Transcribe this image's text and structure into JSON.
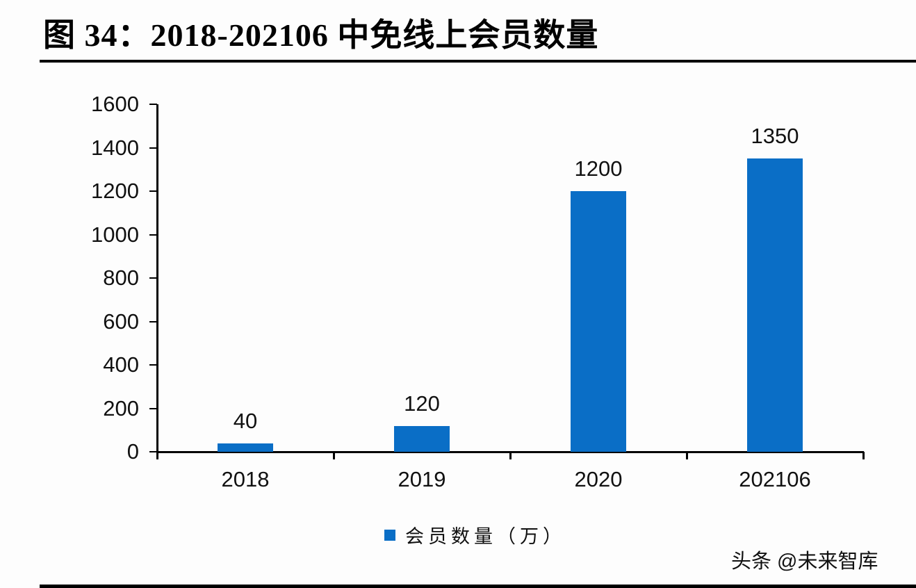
{
  "header": {
    "title": "图  34：2018-202106 中免线上会员数量"
  },
  "legend": {
    "label": "会员数量（万）",
    "color": "#0a6ec6"
  },
  "watermark": "头条 @未来智库",
  "y_ticks": [
    "1600",
    "1400",
    "1200",
    "1000",
    "800",
    "600",
    "400",
    "200",
    "0"
  ],
  "bars": [
    {
      "category": "2018",
      "value": 40,
      "label": "40"
    },
    {
      "category": "2019",
      "value": 120,
      "label": "120"
    },
    {
      "category": "2020",
      "value": 1200,
      "label": "1200"
    },
    {
      "category": "202106",
      "value": 1350,
      "label": "1350"
    }
  ],
  "chart_data": {
    "type": "bar",
    "title": "图 34：2018-202106 中免线上会员数量",
    "categories": [
      "2018",
      "2019",
      "2020",
      "202106"
    ],
    "series": [
      {
        "name": "会员数量（万）",
        "values": [
          40,
          120,
          1200,
          1350
        ],
        "color": "#0a6ec6"
      }
    ],
    "values": [
      40,
      120,
      1200,
      1350
    ],
    "data_labels": [
      "40",
      "120",
      "1200",
      "1350"
    ],
    "xlabel": "",
    "ylabel": "",
    "ylim": [
      0,
      1600
    ],
    "yticks": [
      0,
      200,
      400,
      600,
      800,
      1000,
      1200,
      1400,
      1600
    ],
    "grid": false,
    "legend_position": "bottom"
  }
}
